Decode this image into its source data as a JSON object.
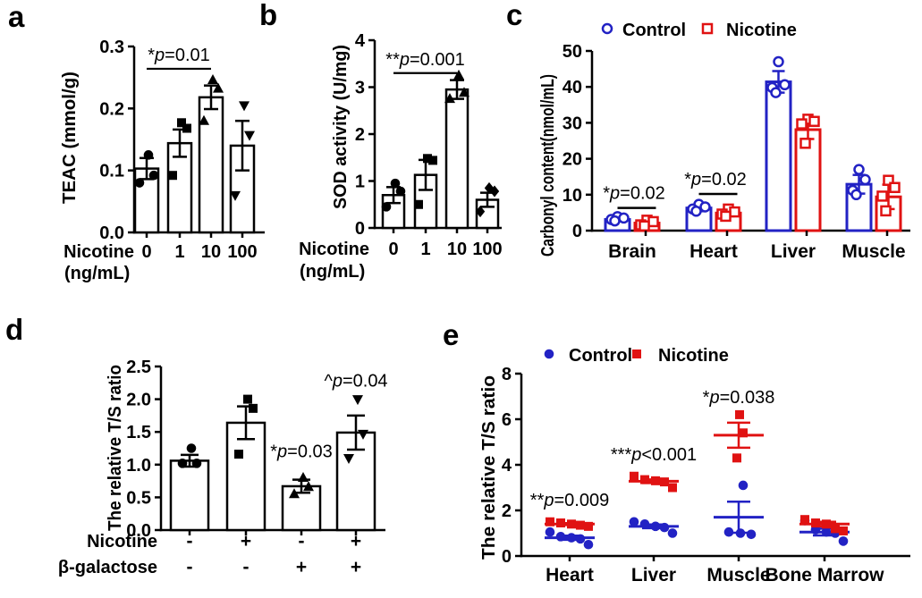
{
  "palette": {
    "black": "#000000",
    "control_blue": "#2222c4",
    "nicotine_red": "#e01212",
    "background": "#ffffff"
  },
  "chart_data": [
    {
      "panel": "a",
      "type": "bar",
      "title": "",
      "ylabel": "TEAC (mmol/g)",
      "ylim": [
        0,
        0.3
      ],
      "yticks": [
        "0.0",
        "0.1",
        "0.2",
        "0.3"
      ],
      "x_title": "Nicotine",
      "x_unit": "(ng/mL)",
      "categories": [
        "0",
        "1",
        "10",
        "100"
      ],
      "bars": [
        {
          "mean": 0.103,
          "sem": 0.017,
          "marker": "circle",
          "points": [
            0.125,
            0.092,
            0.08
          ]
        },
        {
          "mean": 0.144,
          "sem": 0.022,
          "marker": "square",
          "points": [
            0.177,
            0.168,
            0.092
          ]
        },
        {
          "mean": 0.218,
          "sem": 0.019,
          "marker": "triangle-up",
          "points": [
            0.246,
            0.232,
            0.18
          ]
        },
        {
          "mean": 0.14,
          "sem": 0.04,
          "marker": "triangle-down",
          "points": [
            0.205,
            0.157,
            0.06
          ]
        }
      ],
      "significance": [
        {
          "from": 0,
          "to": 2,
          "line_y": 0.264,
          "text": "*p=0.01"
        }
      ]
    },
    {
      "panel": "b",
      "type": "bar",
      "title": "",
      "ylabel": "SOD activity (U/mg)",
      "ylim": [
        0,
        4
      ],
      "yticks": [
        "0",
        "1",
        "2",
        "3",
        "4"
      ],
      "x_title": "Nicotine",
      "x_unit": "(ng/mL)",
      "categories": [
        "0",
        "1",
        "10",
        "100"
      ],
      "bars": [
        {
          "mean": 0.7,
          "sem": 0.17,
          "marker": "circle",
          "points": [
            0.95,
            0.78,
            0.45
          ]
        },
        {
          "mean": 1.13,
          "sem": 0.32,
          "marker": "square",
          "points": [
            1.48,
            1.44,
            0.5
          ]
        },
        {
          "mean": 2.95,
          "sem": 0.2,
          "marker": "triangle-up",
          "points": [
            3.25,
            2.88,
            2.75
          ]
        },
        {
          "mean": 0.6,
          "sem": 0.15,
          "marker": "diamond",
          "points": [
            0.85,
            0.78,
            0.35
          ]
        }
      ],
      "significance": [
        {
          "from": 0,
          "to": 2,
          "line_y": 3.3,
          "text": "**p=0.001"
        }
      ]
    },
    {
      "panel": "c",
      "type": "grouped_bar",
      "title": "",
      "ylabel": "Carbonyl content(nmol/mL)",
      "ylim": [
        0,
        50
      ],
      "yticks": [
        "0",
        "10",
        "20",
        "30",
        "40",
        "50"
      ],
      "categories": [
        "Brain",
        "Heart",
        "Liver",
        "Muscle"
      ],
      "legend": [
        {
          "label": "Control",
          "color": "control_blue",
          "marker": "open-circle"
        },
        {
          "label": "Nicotine",
          "color": "nicotine_red",
          "marker": "open-square"
        }
      ],
      "series": [
        {
          "name": "Control",
          "color": "control_blue",
          "marker": "open-circle",
          "means": [
            3.1,
            6.3,
            41.4,
            12.9
          ],
          "sems": [
            0.5,
            0.9,
            3.0,
            2.6
          ],
          "points": [
            [
              3.9,
              3.5,
              3.1,
              2.7
            ],
            [
              7.3,
              6.6,
              6.0,
              5.4
            ],
            [
              47.0,
              40.6,
              39.8,
              38.4
            ],
            [
              17.0,
              14.2,
              11.2,
              10.0
            ]
          ]
        },
        {
          "name": "Nicotine",
          "color": "nicotine_red",
          "marker": "open-square",
          "means": [
            2.1,
            4.9,
            28.1,
            9.4
          ],
          "sems": [
            0.6,
            0.9,
            2.6,
            3.4
          ],
          "points": [
            [
              2.9,
              2.5,
              1.6,
              1.3
            ],
            [
              6.0,
              5.2,
              4.6,
              4.0
            ],
            [
              31.0,
              30.4,
              29.7,
              24.3
            ],
            [
              14.0,
              12.0,
              9.6,
              5.5
            ]
          ]
        }
      ],
      "significance": [
        {
          "category": 0,
          "line_y": 6.3,
          "text": "*p=0.02"
        },
        {
          "category": 1,
          "line_y": 10.2,
          "text": "*p=0.02"
        }
      ]
    },
    {
      "panel": "d",
      "type": "bar",
      "title": "",
      "ylabel": "The relative T/S ratio",
      "ylim": [
        0,
        2.5
      ],
      "yticks": [
        "0.0",
        "0.5",
        "1.0",
        "1.5",
        "2.0",
        "2.5"
      ],
      "x_rows": [
        {
          "title": "Nicotine",
          "values": [
            "-",
            "+",
            "-",
            "+"
          ]
        },
        {
          "title": "β-galactose",
          "values": [
            "-",
            "-",
            "+",
            "+"
          ]
        }
      ],
      "bars": [
        {
          "mean": 1.06,
          "sem": 0.09,
          "marker": "circle",
          "points": [
            1.25,
            1.02,
            1.02
          ]
        },
        {
          "mean": 1.64,
          "sem": 0.25,
          "marker": "square",
          "points": [
            2.0,
            1.86,
            1.16
          ]
        },
        {
          "mean": 0.67,
          "sem": 0.1,
          "marker": "triangle-up",
          "points": [
            0.8,
            0.66,
            0.55
          ]
        },
        {
          "mean": 1.49,
          "sem": 0.26,
          "marker": "triangle-down",
          "points": [
            2.0,
            1.47,
            1.1
          ]
        }
      ],
      "annotations": [
        {
          "bar": 2,
          "y": 1.11,
          "text": "*p=0.03"
        },
        {
          "bar": 3,
          "y": 2.19,
          "text": "^p=0.04"
        }
      ]
    },
    {
      "panel": "e",
      "type": "scatter",
      "title": "",
      "ylabel": "The relative T/S ratio",
      "ylim": [
        0,
        8
      ],
      "yticks": [
        "0",
        "2",
        "4",
        "6",
        "8"
      ],
      "categories": [
        "Heart",
        "Liver",
        "Muscle",
        "Bone Marrow"
      ],
      "legend": [
        {
          "label": "Control",
          "color": "control_blue",
          "marker": "circle"
        },
        {
          "label": "Nicotine",
          "color": "nicotine_red",
          "marker": "square"
        }
      ],
      "series": [
        {
          "name": "Control",
          "color": "control_blue",
          "marker": "circle",
          "groups": [
            {
              "points": [
                1.05,
                0.85,
                0.8,
                0.75,
                0.5
              ],
              "mean": 0.8,
              "sem": 0.09
            },
            {
              "points": [
                1.5,
                1.4,
                1.3,
                1.25,
                1.0
              ],
              "mean": 1.3,
              "sem": 0.08
            },
            {
              "points": [
                3.1,
                1.05,
                1.0,
                0.95
              ],
              "mean": 1.7,
              "sem": 0.68
            },
            {
              "points": [
                1.55,
                1.15,
                1.05,
                1.0,
                0.65
              ],
              "mean": 1.05,
              "sem": 0.15
            }
          ]
        },
        {
          "name": "Nicotine",
          "color": "nicotine_red",
          "marker": "square",
          "groups": [
            {
              "points": [
                1.5,
                1.45,
                1.4,
                1.35,
                1.3
              ],
              "mean": 1.4,
              "sem": 0.04
            },
            {
              "points": [
                3.5,
                3.35,
                3.3,
                3.25,
                3.0
              ],
              "mean": 3.28,
              "sem": 0.08
            },
            {
              "points": [
                6.2,
                5.4,
                4.3
              ],
              "mean": 5.3,
              "sem": 0.55
            },
            {
              "points": [
                1.6,
                1.45,
                1.4,
                1.2,
                1.1
              ],
              "mean": 1.4,
              "sem": 0.1
            }
          ]
        }
      ],
      "annotations": [
        {
          "category": 0,
          "y": 2.2,
          "text": "**p=0.009"
        },
        {
          "category": 1,
          "y": 4.2,
          "text": "***p<0.001"
        },
        {
          "category": 2,
          "y": 6.7,
          "text": "*p=0.038"
        }
      ]
    }
  ]
}
